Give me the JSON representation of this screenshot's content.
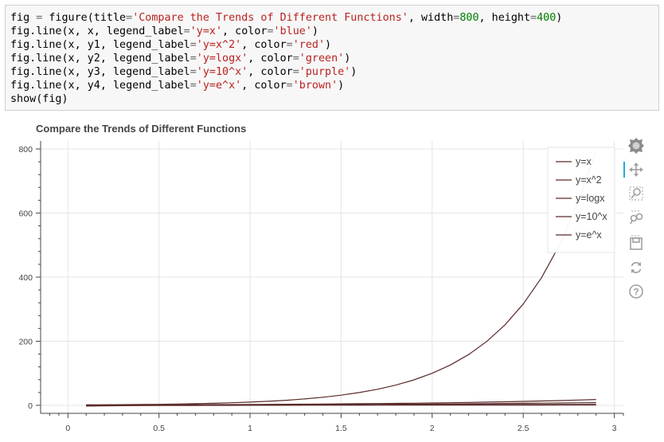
{
  "code_cell": {
    "lines": [
      [
        [
          "fig ",
          ""
        ],
        [
          "=",
          "op"
        ],
        [
          " figure(title",
          ""
        ],
        [
          "=",
          "op"
        ],
        [
          "'Compare the Trends of Different Functions'",
          "str"
        ],
        [
          ", width",
          ""
        ],
        [
          "=",
          "op"
        ],
        [
          "800",
          "num"
        ],
        [
          ", height",
          ""
        ],
        [
          "=",
          "op"
        ],
        [
          "400",
          "num"
        ],
        [
          ")",
          ""
        ]
      ],
      [
        [
          "fig.line(x, x, legend_label",
          ""
        ],
        [
          "=",
          "op"
        ],
        [
          "'y=x'",
          "str"
        ],
        [
          ", color",
          ""
        ],
        [
          "=",
          "op"
        ],
        [
          "'blue'",
          "str"
        ],
        [
          ")",
          ""
        ]
      ],
      [
        [
          "fig.line(x, y1, legend_label",
          ""
        ],
        [
          "=",
          "op"
        ],
        [
          "'y=x^2'",
          "str"
        ],
        [
          ", color",
          ""
        ],
        [
          "=",
          "op"
        ],
        [
          "'red'",
          "str"
        ],
        [
          ")",
          ""
        ]
      ],
      [
        [
          "fig.line(x, y2, legend_label",
          ""
        ],
        [
          "=",
          "op"
        ],
        [
          "'y=logx'",
          "str"
        ],
        [
          ", color",
          ""
        ],
        [
          "=",
          "op"
        ],
        [
          "'green'",
          "str"
        ],
        [
          ")",
          ""
        ]
      ],
      [
        [
          "fig.line(x, y3, legend_label",
          ""
        ],
        [
          "=",
          "op"
        ],
        [
          "'y=10^x'",
          "str"
        ],
        [
          ", color",
          ""
        ],
        [
          "=",
          "op"
        ],
        [
          "'purple'",
          "str"
        ],
        [
          ")",
          ""
        ]
      ],
      [
        [
          "fig.line(x, y4, legend_label",
          ""
        ],
        [
          "=",
          "op"
        ],
        [
          "'y=e^x'",
          "str"
        ],
        [
          ", color",
          ""
        ],
        [
          "=",
          "op"
        ],
        [
          "'brown'",
          "str"
        ],
        [
          ")",
          ""
        ]
      ],
      [
        [
          "show(fig)",
          ""
        ]
      ]
    ]
  },
  "colors": {
    "line": "#5a2a2a",
    "grid": "#e5e5e5",
    "axis": "#444444",
    "toolbar_icon": "#a0a0a0",
    "toolbar_active": "#26aae1"
  },
  "chart_data": {
    "type": "line",
    "title": "Compare the Trends of Different Functions",
    "xlabel": "",
    "ylabel": "",
    "xlim": [
      -0.15,
      3.05
    ],
    "ylim": [
      -25,
      825
    ],
    "x_ticks": [
      0,
      0.5,
      1,
      1.5,
      2,
      2.5,
      3
    ],
    "x_tick_labels": [
      "0",
      "0.5",
      "1",
      "1.5",
      "2",
      "2.5",
      "3"
    ],
    "y_ticks": [
      0,
      200,
      400,
      600,
      800
    ],
    "y_tick_labels": [
      "0",
      "200",
      "400",
      "600",
      "800"
    ],
    "grid": true,
    "legend_position": "top-right",
    "x": [
      0.1,
      0.2,
      0.3,
      0.4,
      0.5,
      0.6,
      0.7,
      0.8,
      0.9,
      1.0,
      1.1,
      1.2,
      1.3,
      1.4,
      1.5,
      1.6,
      1.7,
      1.8,
      1.9,
      2.0,
      2.1,
      2.2,
      2.3,
      2.4,
      2.5,
      2.6,
      2.7,
      2.8,
      2.9
    ],
    "series": [
      {
        "name": "y=x",
        "values": [
          0.1,
          0.2,
          0.3,
          0.4,
          0.5,
          0.6,
          0.7,
          0.8,
          0.9,
          1.0,
          1.1,
          1.2,
          1.3,
          1.4,
          1.5,
          1.6,
          1.7,
          1.8,
          1.9,
          2.0,
          2.1,
          2.2,
          2.3,
          2.4,
          2.5,
          2.6,
          2.7,
          2.8,
          2.9
        ]
      },
      {
        "name": "y=x^2",
        "values": [
          0.01,
          0.04,
          0.09,
          0.16,
          0.25,
          0.36,
          0.49,
          0.64,
          0.81,
          1.0,
          1.21,
          1.44,
          1.69,
          1.96,
          2.25,
          2.56,
          2.89,
          3.24,
          3.61,
          4.0,
          4.41,
          4.84,
          5.29,
          5.76,
          6.25,
          6.76,
          7.29,
          7.84,
          8.41
        ]
      },
      {
        "name": "y=logx",
        "values": [
          -2.303,
          -1.609,
          -1.204,
          -0.916,
          -0.693,
          -0.511,
          -0.357,
          -0.223,
          -0.105,
          0.0,
          0.095,
          0.182,
          0.262,
          0.336,
          0.405,
          0.47,
          0.531,
          0.588,
          0.642,
          0.693,
          0.742,
          0.788,
          0.833,
          0.875,
          0.916,
          0.956,
          0.993,
          1.03,
          1.065
        ]
      },
      {
        "name": "y=10^x",
        "values": [
          1.26,
          1.58,
          2.0,
          2.51,
          3.16,
          3.98,
          5.01,
          6.31,
          7.94,
          10.0,
          12.59,
          15.85,
          19.95,
          25.12,
          31.62,
          39.81,
          50.12,
          63.1,
          79.43,
          100.0,
          125.89,
          158.49,
          199.53,
          251.19,
          316.23,
          398.11,
          501.19,
          630.96,
          794.33
        ]
      },
      {
        "name": "y=e^x",
        "values": [
          1.105,
          1.221,
          1.35,
          1.492,
          1.649,
          1.822,
          2.014,
          2.226,
          2.46,
          2.718,
          3.004,
          3.32,
          3.669,
          4.055,
          4.482,
          4.953,
          5.474,
          6.05,
          6.686,
          7.389,
          8.166,
          9.025,
          9.974,
          11.023,
          12.182,
          13.464,
          14.88,
          16.445,
          18.174
        ]
      }
    ]
  },
  "toolbar": {
    "tools": [
      {
        "name": "bokeh-logo-icon",
        "interactable": true
      },
      {
        "name": "pan-tool-icon",
        "interactable": true,
        "active": true
      },
      {
        "name": "box-zoom-tool-icon",
        "interactable": true
      },
      {
        "name": "wheel-zoom-tool-icon",
        "interactable": true
      },
      {
        "name": "save-tool-icon",
        "interactable": true
      },
      {
        "name": "reset-tool-icon",
        "interactable": true
      },
      {
        "name": "help-tool-icon",
        "interactable": true
      }
    ]
  }
}
